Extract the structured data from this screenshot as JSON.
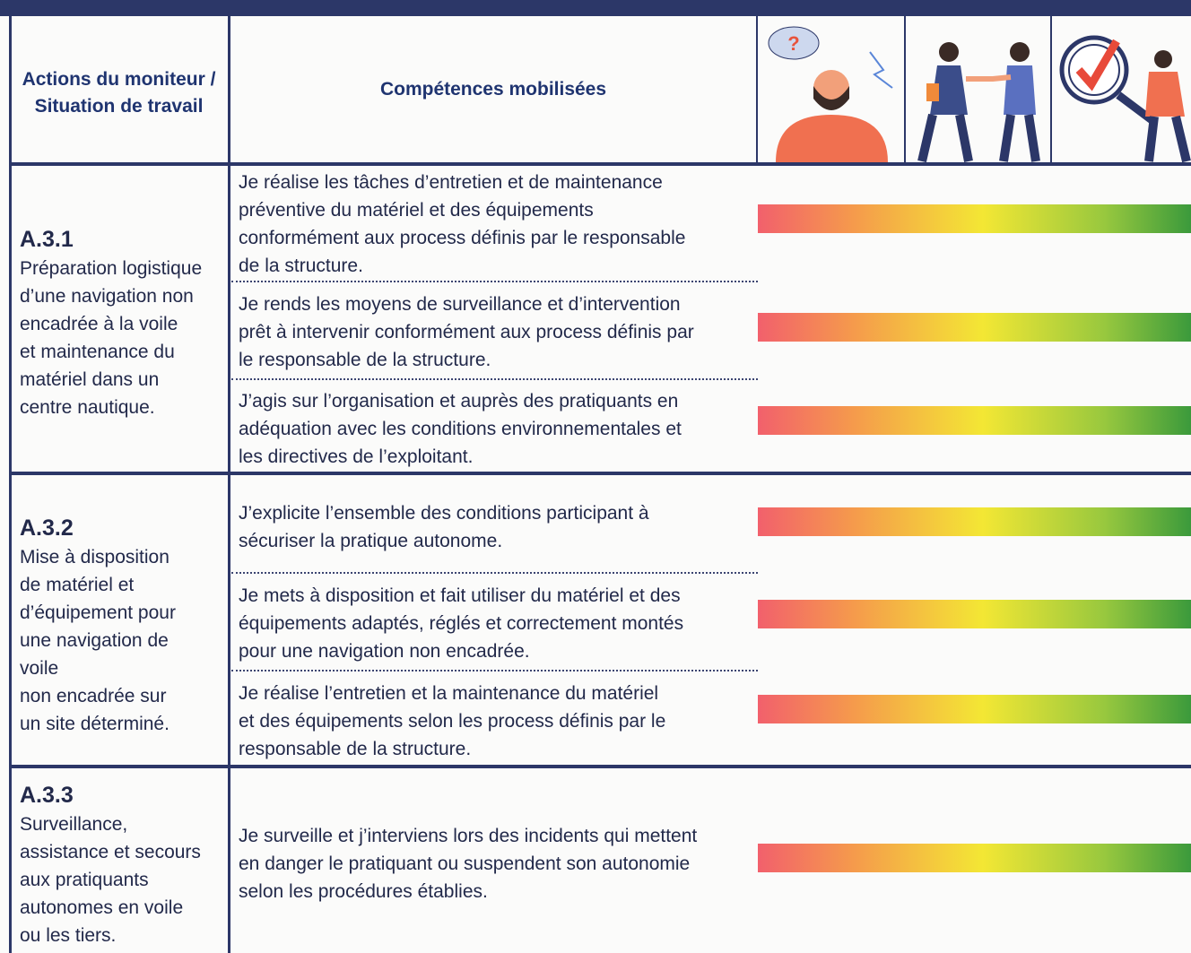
{
  "header": {
    "col1": [
      "Actions du moniteur /",
      "Situation de travail"
    ],
    "col2": "Compétences mobilisées"
  },
  "rows": [
    {
      "code": "A.3.1",
      "description": [
        "Préparation logistique",
        "d’une navigation non",
        "encadrée à la voile",
        "et maintenance du",
        "matériel dans un",
        "centre nautique."
      ],
      "competences": [
        [
          "Je réalise les tâches d’entretien et de maintenance",
          "préventive du matériel et des équipements",
          "conformément aux process définis par le responsable",
          "de la structure."
        ],
        [
          "Je rends les moyens de surveillance et d’intervention",
          "prêt à intervenir conformément aux process définis par",
          "le responsable de la structure."
        ],
        [
          "J’agis sur l’organisation et auprès des pratiquants en",
          "adéquation avec les conditions environnementales et",
          "les directives de l’exploitant."
        ]
      ]
    },
    {
      "code": "A.3.2",
      "description": [
        "Mise à disposition",
        "de matériel et",
        "d’équipement pour",
        "une navigation de",
        "voile",
        "non encadrée sur",
        "un site déterminé."
      ],
      "competences": [
        [
          "J’explicite l’ensemble des conditions participant à",
          "sécuriser la pratique autonome."
        ],
        [
          "Je mets à disposition et fait utiliser du matériel et des",
          "équipements adaptés, réglés et correctement montés",
          "pour une navigation non encadrée."
        ],
        [
          "Je réalise l’entretien et la maintenance du matériel",
          "et des équipements selon les process définis par le",
          "responsable de la structure."
        ]
      ]
    },
    {
      "code": "A.3.3",
      "description": [
        "Surveillance,",
        "assistance et secours",
        "aux pratiquants",
        "autonomes en voile",
        "ou les tiers."
      ],
      "competences": [
        [
          "Je surveille et j’interviens lors des incidents qui mettent",
          "en danger le pratiquant ou suspendent son autonomie",
          "selon les procédures établies."
        ]
      ]
    }
  ]
}
